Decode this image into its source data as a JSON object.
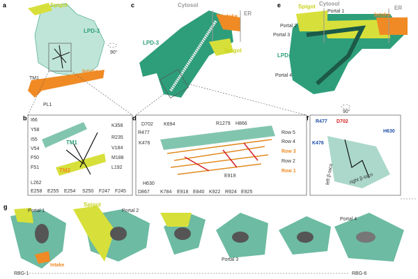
{
  "a": {
    "letter": "a",
    "spigot": "Spigot",
    "lpd": "LPD-3",
    "tm1": "TM1",
    "intake": "Intake",
    "pl1": "PL1",
    "rotation": "90°"
  },
  "c": {
    "letter": "c",
    "cytosol": "Cytosol",
    "er": "ER",
    "intake": "Intake",
    "lpd": "LPD-3",
    "spigot": "Spigot"
  },
  "e": {
    "letter": "e",
    "spigot": "Spigot",
    "cytosol": "Cytosol",
    "er": "ER",
    "intake": "Intake",
    "lpd": "LPD-3",
    "portals": [
      "Portal 1",
      "Portal 2",
      "Portal 3",
      "Portal 4"
    ]
  },
  "b": {
    "letter": "b",
    "tm1": "TM1",
    "tm2": "TM2",
    "left": [
      "I66",
      "Y58",
      "I55",
      "V54",
      "F50",
      "F51",
      "L262"
    ],
    "right": [
      "K358",
      "R235",
      "V184",
      "M188",
      "L192"
    ],
    "bottom": [
      "E258",
      "E255",
      "E254",
      "S250",
      "F247",
      "F245"
    ]
  },
  "d": {
    "letter": "d",
    "top": [
      "D702",
      "K694",
      "R477",
      "K476",
      "R1279",
      "H866"
    ],
    "rows": [
      "Row 5",
      "Row 4",
      "Row 3",
      "Row 2",
      "Row 1"
    ],
    "middle": [
      "E919",
      "H630"
    ],
    "bottom": [
      "D867",
      "K784",
      "E918",
      "E840",
      "K922",
      "R924",
      "E925"
    ]
  },
  "f": {
    "letter": "f",
    "rotation": "90°",
    "residues": [
      "R477",
      "D702",
      "H630",
      "K476"
    ],
    "left_taco": "left β-taco",
    "right_taco": "right β-taco"
  },
  "g": {
    "letter": "g",
    "portal1": "Portal 1",
    "spigot": "Spigot",
    "portal2": "Portal 2",
    "portal3": "Portal 3",
    "portal4": "Portal 4",
    "intake": "Intake",
    "start": "RBG-1",
    "end": "RBG-6"
  }
}
